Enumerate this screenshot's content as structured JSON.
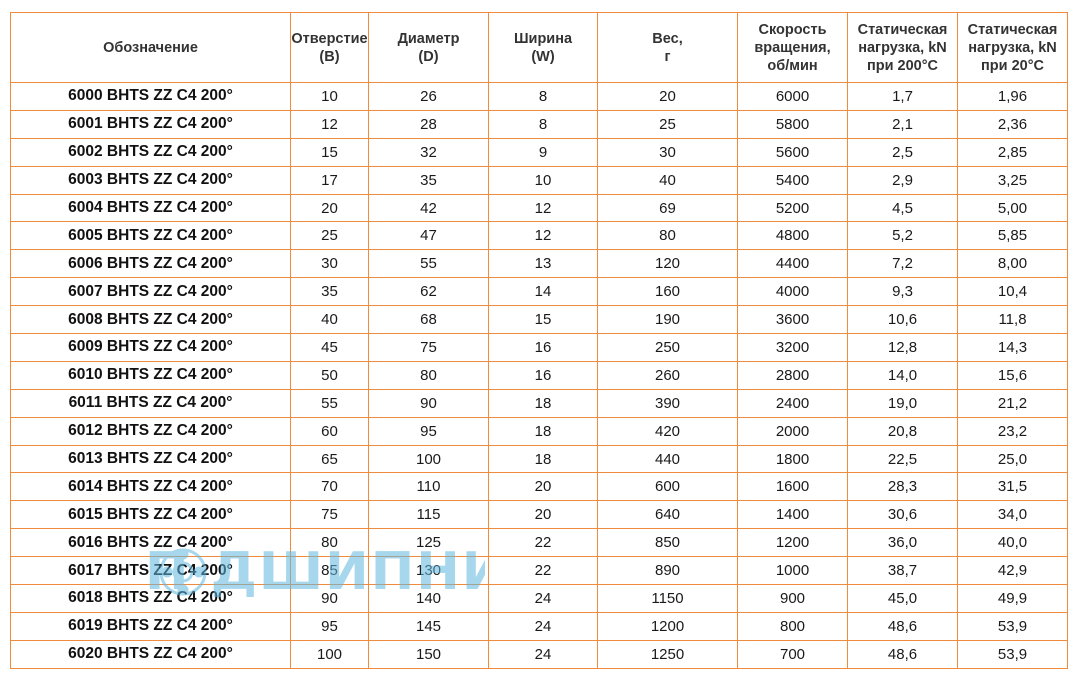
{
  "headers": [
    [
      "Обозначение"
    ],
    [
      "Отверстие",
      "(B)"
    ],
    [
      "Диаметр",
      "(D)"
    ],
    [
      "Ширина",
      "(W)"
    ],
    [
      "Вес,",
      "г"
    ],
    [
      "Скорость",
      "вращения,",
      "об/мин"
    ],
    [
      "Статическая",
      "нагрузка, kN",
      "при 200°С"
    ],
    [
      "Статическая",
      "нагрузка, kN",
      "при 20°С"
    ]
  ],
  "rows": [
    [
      "6000 BHTS ZZ C4 200°",
      "10",
      "26",
      "8",
      "20",
      "6000",
      "1,7",
      "1,96"
    ],
    [
      "6001 BHTS ZZ C4 200°",
      "12",
      "28",
      "8",
      "25",
      "5800",
      "2,1",
      "2,36"
    ],
    [
      "6002 BHTS ZZ C4 200°",
      "15",
      "32",
      "9",
      "30",
      "5600",
      "2,5",
      "2,85"
    ],
    [
      "6003 BHTS ZZ C4 200°",
      "17",
      "35",
      "10",
      "40",
      "5400",
      "2,9",
      "3,25"
    ],
    [
      "6004 BHTS ZZ C4 200°",
      "20",
      "42",
      "12",
      "69",
      "5200",
      "4,5",
      "5,00"
    ],
    [
      "6005 BHTS ZZ C4 200°",
      "25",
      "47",
      "12",
      "80",
      "4800",
      "5,2",
      "5,85"
    ],
    [
      "6006 BHTS ZZ C4 200°",
      "30",
      "55",
      "13",
      "120",
      "4400",
      "7,2",
      "8,00"
    ],
    [
      "6007 BHTS ZZ C4 200°",
      "35",
      "62",
      "14",
      "160",
      "4000",
      "9,3",
      "10,4"
    ],
    [
      "6008 BHTS ZZ C4 200°",
      "40",
      "68",
      "15",
      "190",
      "3600",
      "10,6",
      "11,8"
    ],
    [
      "6009 BHTS ZZ C4 200°",
      "45",
      "75",
      "16",
      "250",
      "3200",
      "12,8",
      "14,3"
    ],
    [
      "6010 BHTS ZZ C4 200°",
      "50",
      "80",
      "16",
      "260",
      "2800",
      "14,0",
      "15,6"
    ],
    [
      "6011 BHTS ZZ C4 200°",
      "55",
      "90",
      "18",
      "390",
      "2400",
      "19,0",
      "21,2"
    ],
    [
      "6012 BHTS ZZ C4 200°",
      "60",
      "95",
      "18",
      "420",
      "2000",
      "20,8",
      "23,2"
    ],
    [
      "6013 BHTS ZZ C4 200°",
      "65",
      "100",
      "18",
      "440",
      "1800",
      "22,5",
      "25,0"
    ],
    [
      "6014 BHTS ZZ C4 200°",
      "70",
      "110",
      "20",
      "600",
      "1600",
      "28,3",
      "31,5"
    ],
    [
      "6015 BHTS ZZ C4 200°",
      "75",
      "115",
      "20",
      "640",
      "1400",
      "30,6",
      "34,0"
    ],
    [
      "6016 BHTS ZZ C4 200°",
      "80",
      "125",
      "22",
      "850",
      "1200",
      "36,0",
      "40,0"
    ],
    [
      "6017 BHTS ZZ C4 200°",
      "85",
      "130",
      "22",
      "890",
      "1000",
      "38,7",
      "42,9"
    ],
    [
      "6018 BHTS ZZ C4 200°",
      "90",
      "140",
      "24",
      "1150",
      "900",
      "45,0",
      "49,9"
    ],
    [
      "6019 BHTS ZZ C4 200°",
      "95",
      "145",
      "24",
      "1200",
      "800",
      "48,6",
      "53,9"
    ],
    [
      "6020 BHTS ZZ C4 200°",
      "100",
      "150",
      "24",
      "1250",
      "700",
      "48,6",
      "53,9"
    ]
  ],
  "watermark": {
    "text": "П ДШИПНИКЪ",
    "color": "#5fb8e0"
  },
  "colors": {
    "border": "#f08a3c",
    "text": "#1a1a1a"
  }
}
